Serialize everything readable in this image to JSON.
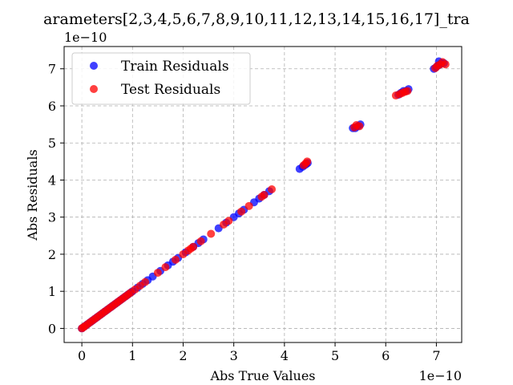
{
  "chart_data": {
    "type": "scatter",
    "title": "arameters[2,3,4,5,6,7,8,9,10,11,12,13,14,15,16,17]_tra",
    "xlabel": "Abs True Values",
    "ylabel": "Abs Residuals",
    "x_offset_text": "1e−10",
    "y_offset_text": "1e−10",
    "xlim": [
      -0.35,
      7.5
    ],
    "ylim": [
      -0.38,
      7.6
    ],
    "x_ticks": [
      0,
      1,
      2,
      3,
      4,
      5,
      6,
      7
    ],
    "y_ticks": [
      0,
      1,
      2,
      3,
      4,
      5,
      6,
      7
    ],
    "x_tick_labels": [
      "0",
      "1",
      "2",
      "3",
      "4",
      "5",
      "6",
      "7"
    ],
    "y_tick_labels": [
      "0",
      "1",
      "2",
      "3",
      "4",
      "5",
      "6",
      "7"
    ],
    "grid": true,
    "legend_position": "top-left",
    "series": [
      {
        "name": "Train Residuals",
        "color": "#0000ff",
        "points": [
          [
            0.0,
            0.0
          ],
          [
            0.05,
            0.05
          ],
          [
            0.1,
            0.1
          ],
          [
            0.15,
            0.15
          ],
          [
            0.2,
            0.2
          ],
          [
            0.25,
            0.25
          ],
          [
            0.3,
            0.3
          ],
          [
            0.35,
            0.35
          ],
          [
            0.4,
            0.4
          ],
          [
            0.45,
            0.45
          ],
          [
            0.5,
            0.5
          ],
          [
            0.55,
            0.55
          ],
          [
            0.6,
            0.6
          ],
          [
            0.65,
            0.65
          ],
          [
            0.7,
            0.7
          ],
          [
            0.75,
            0.75
          ],
          [
            0.8,
            0.8
          ],
          [
            0.85,
            0.85
          ],
          [
            0.9,
            0.9
          ],
          [
            0.95,
            0.95
          ],
          [
            1.0,
            1.0
          ],
          [
            1.1,
            1.1
          ],
          [
            1.2,
            1.2
          ],
          [
            1.3,
            1.3
          ],
          [
            1.4,
            1.4
          ],
          [
            1.55,
            1.55
          ],
          [
            1.7,
            1.7
          ],
          [
            1.8,
            1.8
          ],
          [
            1.9,
            1.9
          ],
          [
            2.05,
            2.05
          ],
          [
            2.2,
            2.2
          ],
          [
            2.3,
            2.3
          ],
          [
            2.4,
            2.4
          ],
          [
            2.7,
            2.7
          ],
          [
            2.85,
            2.85
          ],
          [
            3.0,
            3.0
          ],
          [
            3.1,
            3.1
          ],
          [
            3.2,
            3.2
          ],
          [
            3.4,
            3.4
          ],
          [
            3.5,
            3.5
          ],
          [
            3.6,
            3.6
          ],
          [
            3.7,
            3.7
          ],
          [
            4.3,
            4.3
          ],
          [
            4.36,
            4.36
          ],
          [
            4.4,
            4.4
          ],
          [
            4.43,
            4.43
          ],
          [
            4.46,
            4.46
          ],
          [
            5.35,
            5.4
          ],
          [
            5.4,
            5.4
          ],
          [
            5.45,
            5.45
          ],
          [
            5.5,
            5.5
          ],
          [
            6.25,
            6.3
          ],
          [
            6.3,
            6.35
          ],
          [
            6.35,
            6.4
          ],
          [
            6.4,
            6.4
          ],
          [
            6.45,
            6.45
          ],
          [
            6.95,
            7.0
          ],
          [
            7.0,
            7.05
          ],
          [
            7.05,
            7.1
          ],
          [
            7.05,
            7.2
          ],
          [
            7.1,
            7.15
          ],
          [
            7.15,
            7.15
          ]
        ]
      },
      {
        "name": "Test Residuals",
        "color": "#ff0000",
        "points": [
          [
            0.0,
            0.0
          ],
          [
            0.03,
            0.03
          ],
          [
            0.07,
            0.07
          ],
          [
            0.12,
            0.12
          ],
          [
            0.17,
            0.17
          ],
          [
            0.22,
            0.22
          ],
          [
            0.27,
            0.27
          ],
          [
            0.32,
            0.32
          ],
          [
            0.37,
            0.37
          ],
          [
            0.42,
            0.42
          ],
          [
            0.47,
            0.47
          ],
          [
            0.52,
            0.52
          ],
          [
            0.57,
            0.57
          ],
          [
            0.62,
            0.62
          ],
          [
            0.67,
            0.67
          ],
          [
            0.72,
            0.72
          ],
          [
            0.77,
            0.77
          ],
          [
            0.82,
            0.82
          ],
          [
            0.87,
            0.87
          ],
          [
            0.92,
            0.92
          ],
          [
            0.97,
            0.97
          ],
          [
            1.05,
            1.05
          ],
          [
            1.15,
            1.15
          ],
          [
            1.25,
            1.25
          ],
          [
            1.5,
            1.5
          ],
          [
            1.65,
            1.65
          ],
          [
            1.85,
            1.85
          ],
          [
            2.0,
            2.0
          ],
          [
            2.1,
            2.1
          ],
          [
            2.15,
            2.15
          ],
          [
            2.2,
            2.2
          ],
          [
            2.35,
            2.35
          ],
          [
            2.55,
            2.55
          ],
          [
            2.8,
            2.8
          ],
          [
            2.9,
            2.9
          ],
          [
            3.15,
            3.15
          ],
          [
            3.3,
            3.3
          ],
          [
            3.55,
            3.55
          ],
          [
            3.6,
            3.6
          ],
          [
            3.75,
            3.75
          ],
          [
            4.38,
            4.4
          ],
          [
            4.42,
            4.45
          ],
          [
            4.45,
            4.5
          ],
          [
            5.38,
            5.42
          ],
          [
            5.42,
            5.48
          ],
          [
            5.48,
            5.45
          ],
          [
            6.2,
            6.28
          ],
          [
            6.28,
            6.32
          ],
          [
            6.33,
            6.35
          ],
          [
            6.38,
            6.38
          ],
          [
            6.43,
            6.4
          ],
          [
            6.98,
            7.02
          ],
          [
            7.02,
            7.08
          ],
          [
            7.08,
            7.12
          ],
          [
            7.12,
            7.18
          ],
          [
            7.18,
            7.12
          ]
        ]
      }
    ]
  }
}
